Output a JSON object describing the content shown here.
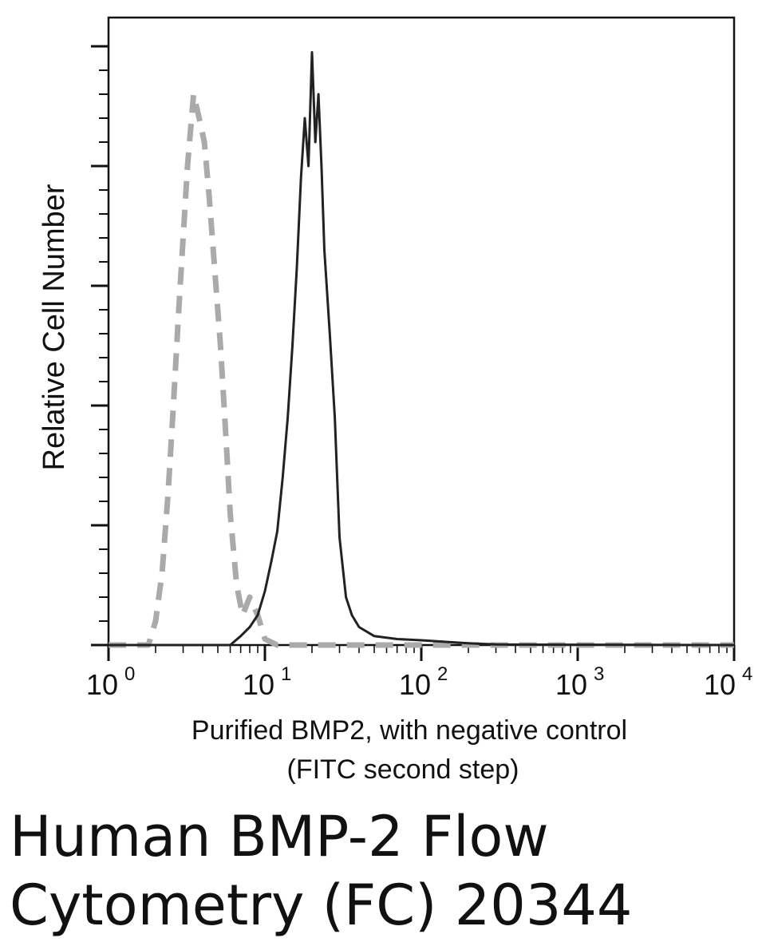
{
  "chart_data": {
    "type": "line",
    "title": "",
    "xlabel_line1": "Purified BMP2, with negative control",
    "xlabel_line2": "(FITC second step)",
    "ylabel": "Relative Cell Number",
    "x_scale": "log10",
    "xlim": [
      1,
      10000
    ],
    "ylim": [
      0,
      100
    ],
    "x_ticks": [
      {
        "base": "10",
        "exp": "0"
      },
      {
        "base": "10",
        "exp": "1"
      },
      {
        "base": "10",
        "exp": "2"
      },
      {
        "base": "10",
        "exp": "3"
      },
      {
        "base": "10",
        "exp": "4"
      }
    ],
    "grid": false,
    "legend": "none",
    "series": [
      {
        "style": "dashed",
        "color": "#aaaaaa",
        "points": [
          [
            1,
            0
          ],
          [
            1.8,
            0
          ],
          [
            2.0,
            4
          ],
          [
            2.2,
            12
          ],
          [
            2.4,
            25
          ],
          [
            2.6,
            40
          ],
          [
            2.8,
            55
          ],
          [
            3.0,
            68
          ],
          [
            3.2,
            80
          ],
          [
            3.5,
            92
          ],
          [
            3.8,
            88
          ],
          [
            4.1,
            84
          ],
          [
            4.4,
            75
          ],
          [
            4.8,
            62
          ],
          [
            5.2,
            50
          ],
          [
            5.6,
            36
          ],
          [
            6.0,
            22
          ],
          [
            6.6,
            10
          ],
          [
            7.2,
            5
          ],
          [
            8.0,
            8
          ],
          [
            9.0,
            5
          ],
          [
            10,
            1
          ],
          [
            12,
            0
          ],
          [
            100,
            0
          ],
          [
            10000,
            0
          ]
        ]
      },
      {
        "style": "solid",
        "color": "#222222",
        "points": [
          [
            1,
            0
          ],
          [
            6,
            0
          ],
          [
            7,
            1.5
          ],
          [
            8,
            3
          ],
          [
            9,
            5
          ],
          [
            10,
            9
          ],
          [
            11,
            14
          ],
          [
            12,
            19
          ],
          [
            13,
            28
          ],
          [
            14,
            38
          ],
          [
            15,
            50
          ],
          [
            16,
            63
          ],
          [
            17,
            78
          ],
          [
            18,
            88
          ],
          [
            19,
            80
          ],
          [
            20,
            99
          ],
          [
            21,
            84
          ],
          [
            22,
            92
          ],
          [
            23,
            80
          ],
          [
            24,
            66
          ],
          [
            26,
            52
          ],
          [
            28,
            38
          ],
          [
            30,
            18
          ],
          [
            33,
            8
          ],
          [
            36,
            5
          ],
          [
            40,
            3
          ],
          [
            50,
            1.5
          ],
          [
            70,
            1
          ],
          [
            100,
            0.8
          ],
          [
            150,
            0.5
          ],
          [
            200,
            0.3
          ],
          [
            300,
            0.1
          ],
          [
            1000,
            0.05
          ],
          [
            10000,
            0
          ]
        ]
      }
    ]
  },
  "caption": {
    "line1": "Human BMP-2 Flow",
    "line2": "Cytometry (FC) 20344"
  }
}
